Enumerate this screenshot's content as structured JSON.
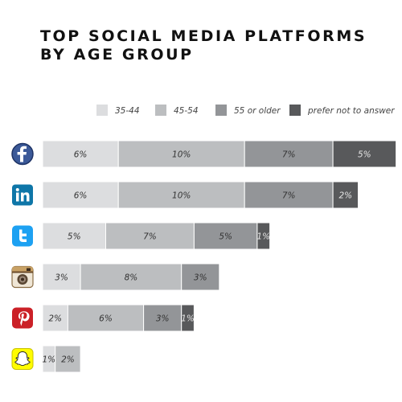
{
  "title_lines": [
    "TOP SOCIAL MEDIA PLATFORMS",
    "BY AGE GROUP"
  ],
  "chart_data": {
    "type": "bar",
    "orientation": "horizontal",
    "stacked": true,
    "categories": [
      "Facebook",
      "LinkedIn",
      "Twitter",
      "Instagram",
      "Pinterest",
      "Snapchat"
    ],
    "category_icons": [
      "facebook-icon",
      "linkedin-icon",
      "twitter-icon",
      "instagram-icon",
      "pinterest-icon",
      "snapchat-icon"
    ],
    "series": [
      {
        "name": "35-44",
        "values": [
          6,
          6,
          5,
          3,
          2,
          1
        ],
        "color": "#dcdddf"
      },
      {
        "name": "45-54",
        "values": [
          10,
          10,
          7,
          8,
          6,
          2
        ],
        "color": "#bcbec0"
      },
      {
        "name": "55 or older",
        "values": [
          7,
          7,
          5,
          3,
          3,
          null
        ],
        "color": "#939598"
      },
      {
        "name": "prefer not to answer",
        "values": [
          5,
          2,
          1,
          null,
          1,
          null
        ],
        "color": "#58595b"
      }
    ],
    "value_suffix": "%",
    "legend_position": "top-right",
    "grid": false
  },
  "icon_colors": {
    "facebook": "#3b5998",
    "linkedin": "#0e76a8",
    "twitter": "#1da1f2",
    "instagram": "#c8a165",
    "pinterest": "#cb2027",
    "snapchat": "#fffc00"
  }
}
